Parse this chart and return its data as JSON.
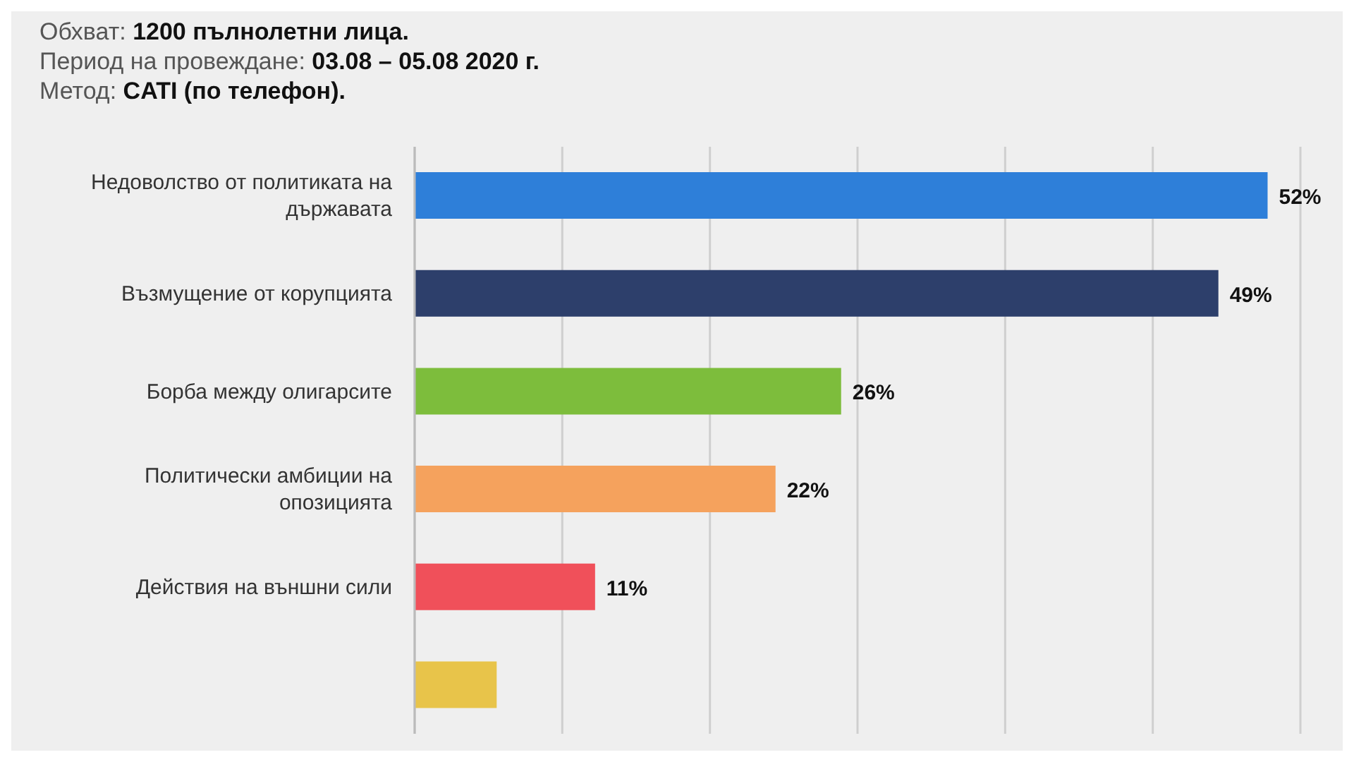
{
  "chart_data": {
    "type": "bar",
    "orientation": "horizontal",
    "annotations": [
      "Обхват: 1200 пълнолетни лица.",
      "Период на провеждане: 03.08 – 05.08 2020 г.",
      "Метод: CATI (по телефон)."
    ],
    "categories": [
      "Недоволство от политиката на държавата",
      "Възмущение от корупцията",
      "Борба между олигарсите",
      "Политически амбиции на опозицията",
      "Действия на външни сили",
      null
    ],
    "values": [
      52,
      49,
      26,
      22,
      11,
      5
    ],
    "colors": [
      "#2e7fd9",
      "#2d3f6b",
      "#7dbd3c",
      "#f5a25d",
      "#f0505a",
      "#e8c44a"
    ],
    "value_labels": [
      "52%",
      "49%",
      "26%",
      "22%",
      "11%",
      null
    ],
    "grid": "x",
    "tick_labels": "y",
    "legend": false
  }
}
